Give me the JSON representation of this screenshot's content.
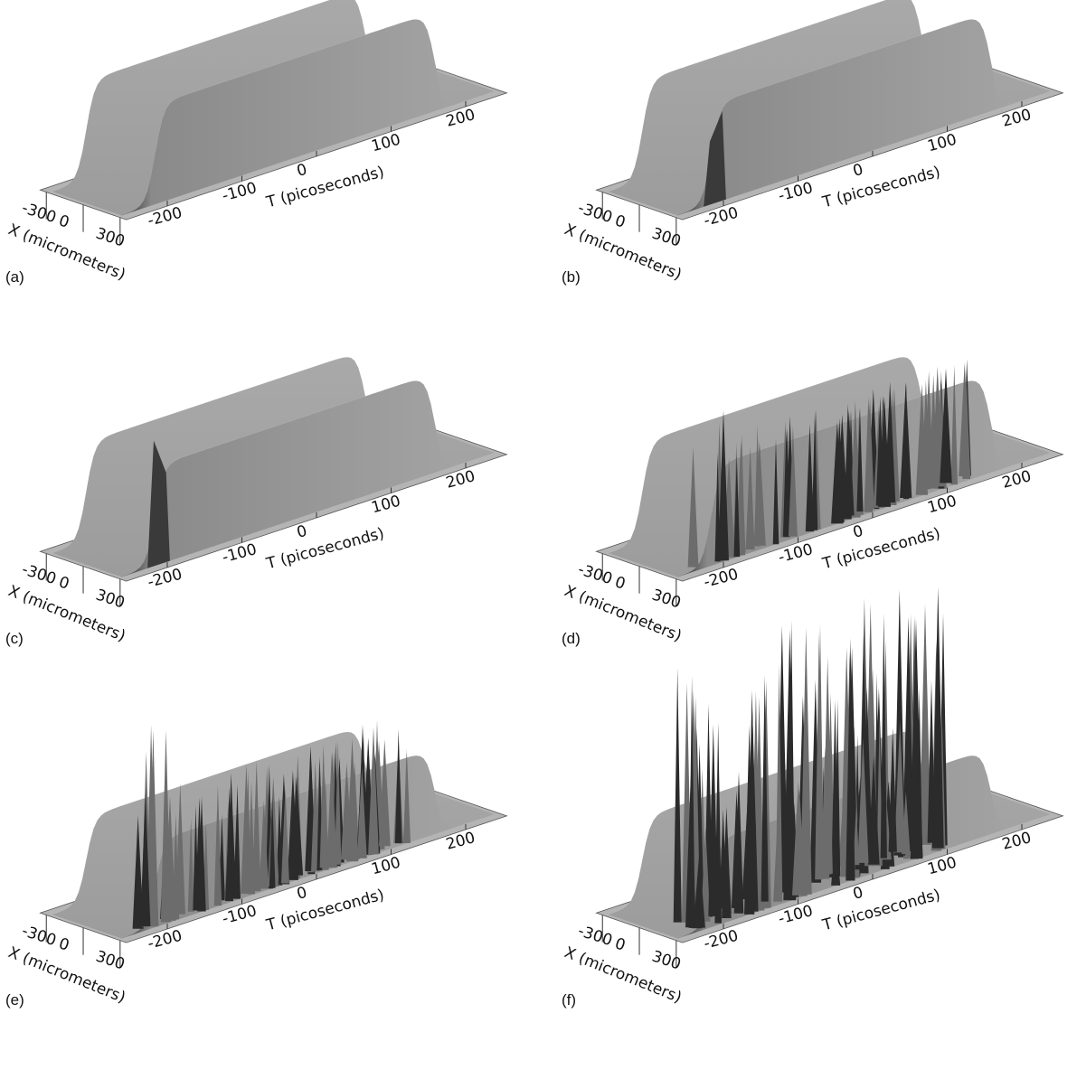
{
  "panels": [
    {
      "label": "(a)",
      "t_axis": {
        "title": "T (picoseconds)",
        "ticks": [
          -200,
          -100,
          0,
          100,
          200
        ]
      },
      "x_axis": {
        "title": "X (micrometers)",
        "ticks": [
          -300,
          0,
          300
        ]
      }
    },
    {
      "label": "(b)",
      "t_axis": {
        "title": "T (picoseconds)",
        "ticks": [
          -200,
          -100,
          0,
          100,
          200
        ]
      },
      "x_axis": {
        "title": "X (micrometers)",
        "ticks": [
          -300,
          0,
          300
        ]
      }
    },
    {
      "label": "(c)",
      "t_axis": {
        "title": "T (picoseconds)",
        "ticks": [
          -200,
          -100,
          0,
          100,
          200
        ]
      },
      "x_axis": {
        "title": "X (micrometers)",
        "ticks": [
          -300,
          0,
          300
        ]
      }
    },
    {
      "label": "(d)",
      "t_axis": {
        "title": "T (picoseconds)",
        "ticks": [
          -200,
          -100,
          0,
          100,
          200
        ]
      },
      "x_axis": {
        "title": "X (micrometers)",
        "ticks": [
          -300,
          0,
          300
        ]
      }
    },
    {
      "label": "(e)",
      "t_axis": {
        "title": "T (picoseconds)",
        "ticks": [
          -200,
          -100,
          0,
          100,
          200
        ]
      },
      "x_axis": {
        "title": "X (micrometers)",
        "ticks": [
          -300,
          0,
          300
        ]
      }
    },
    {
      "label": "(f)",
      "t_axis": {
        "title": "T (picoseconds)",
        "ticks": [
          -200,
          -100,
          0,
          100,
          200
        ]
      },
      "x_axis": {
        "title": "X (micrometers)",
        "ticks": [
          -300,
          0,
          300
        ]
      }
    }
  ]
}
